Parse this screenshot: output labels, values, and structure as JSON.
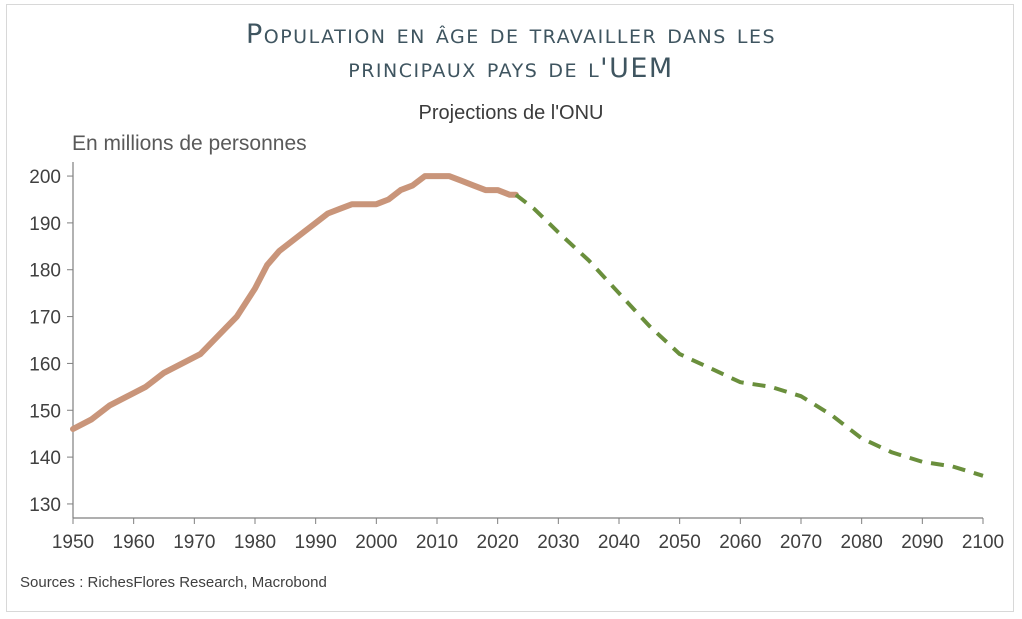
{
  "chart_data": {
    "type": "line",
    "title": "Population en âge de travailler dans les principaux pays de l'UEM",
    "title_lines": [
      "Population en âge de travailler dans les",
      "principaux pays de l'UEM"
    ],
    "subtitle": "Projections de l'ONU",
    "ylabel": "En millions de personnes",
    "xlabel": "",
    "xlim": [
      1950,
      2100
    ],
    "ylim": [
      127,
      203
    ],
    "x_ticks": [
      1950,
      1960,
      1970,
      1980,
      1990,
      2000,
      2010,
      2020,
      2030,
      2040,
      2050,
      2060,
      2070,
      2080,
      2090,
      2100
    ],
    "y_ticks": [
      130,
      140,
      150,
      160,
      170,
      180,
      190,
      200
    ],
    "grid": false,
    "legend": "none",
    "series": [
      {
        "color": "#c9957a",
        "style": "solid",
        "x": [
          1950,
          1953,
          1956,
          1959,
          1962,
          1965,
          1968,
          1971,
          1974,
          1977,
          1980,
          1982,
          1984,
          1986,
          1988,
          1990,
          1992,
          1994,
          1996,
          1998,
          2000,
          2002,
          2004,
          2006,
          2008,
          2010,
          2012,
          2014,
          2016,
          2018,
          2020,
          2022,
          2023
        ],
        "y": [
          146,
          148,
          151,
          153,
          155,
          158,
          160,
          162,
          166,
          170,
          176,
          181,
          184,
          186,
          188,
          190,
          192,
          193,
          194,
          194,
          194,
          195,
          197,
          198,
          200,
          200,
          200,
          199,
          198,
          197,
          197,
          196,
          196
        ]
      },
      {
        "color": "#6a8f3c",
        "style": "dashed",
        "x": [
          2023,
          2026,
          2030,
          2035,
          2040,
          2045,
          2050,
          2055,
          2060,
          2065,
          2070,
          2075,
          2080,
          2085,
          2090,
          2095,
          2100
        ],
        "y": [
          196,
          193,
          188,
          182,
          175,
          168,
          162,
          159,
          156,
          155,
          153,
          149,
          144,
          141,
          139,
          138,
          136
        ]
      }
    ]
  },
  "footer": {
    "source": "Sources : RichesFlores Research, Macrobond"
  }
}
